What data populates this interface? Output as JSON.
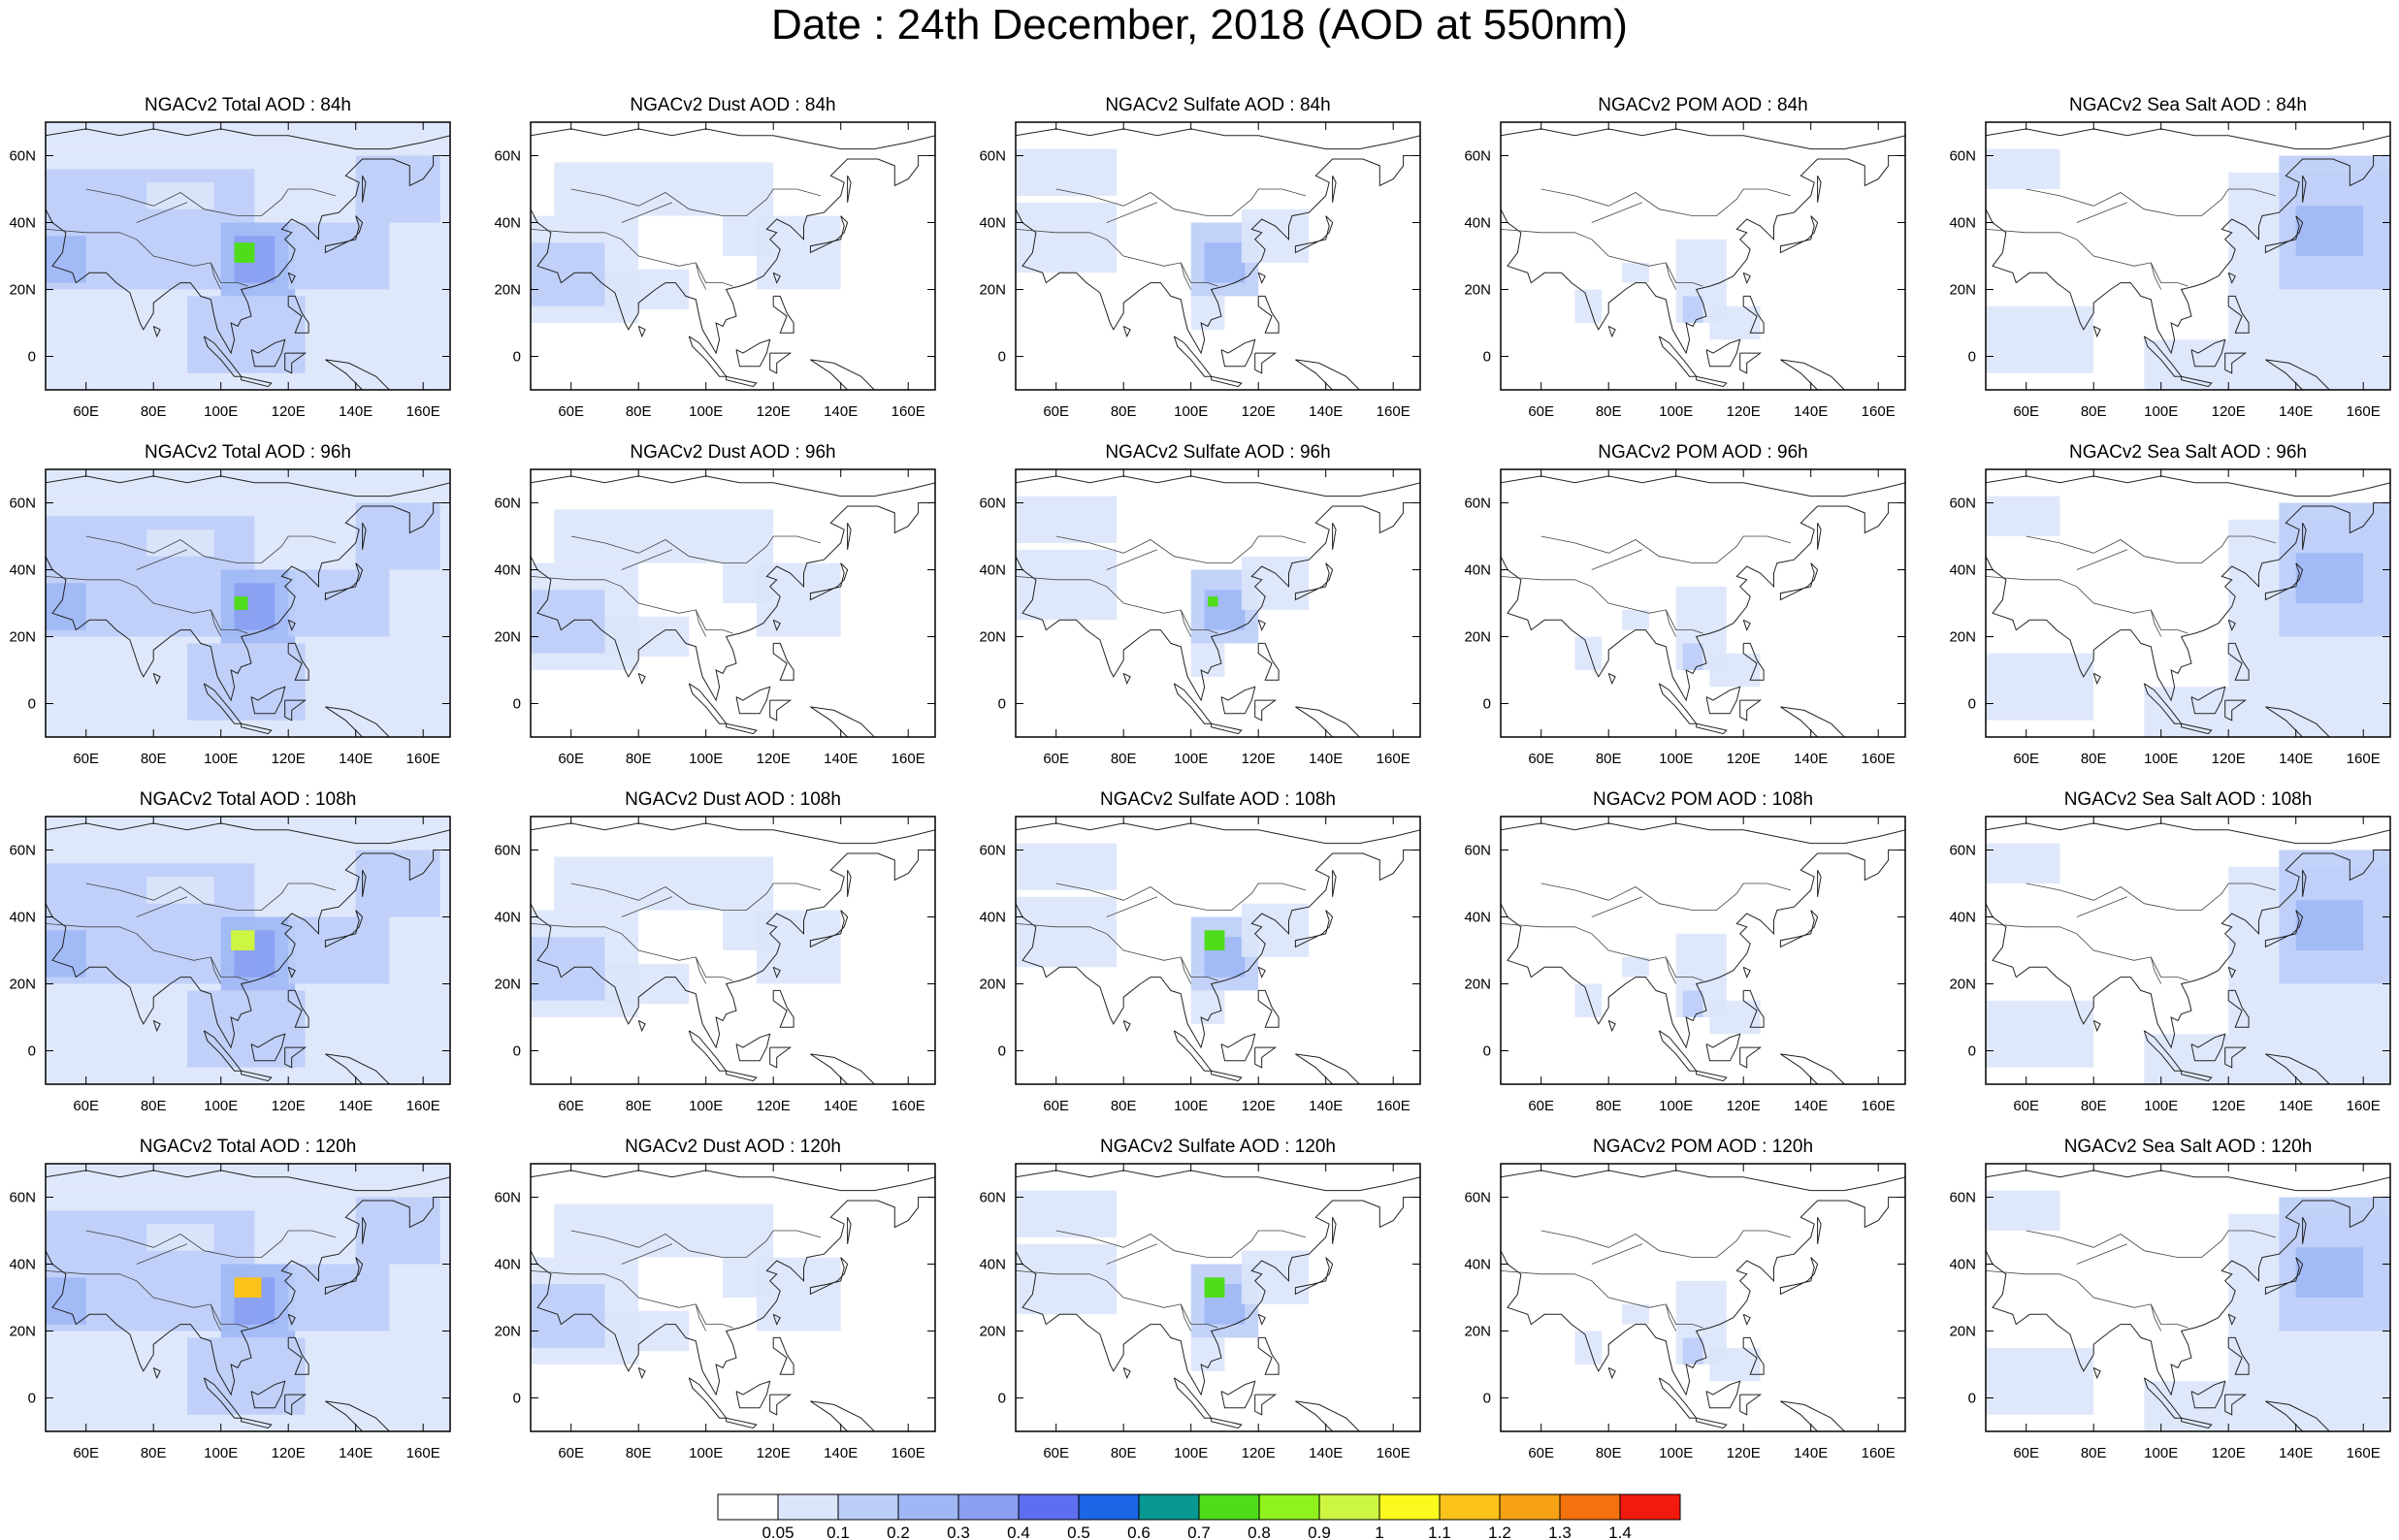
{
  "title": "Date : 24th December, 2018 (AOD at 550nm)",
  "columns": [
    "Total",
    "Dust",
    "Sulfate",
    "POM",
    "Sea Salt"
  ],
  "panel_titles": [
    [
      "NGACv2 Total AOD : 84h",
      "NGACv2 Dust AOD : 84h",
      "NGACv2 Sulfate AOD : 84h",
      "NGACv2 POM AOD : 84h",
      "NGACv2 Sea Salt AOD : 84h"
    ],
    [
      "NGACv2 Total AOD : 96h",
      "NGACv2 Dust AOD : 96h",
      "NGACv2 Sulfate AOD : 96h",
      "NGACv2 POM AOD : 96h",
      "NGACv2 Sea Salt AOD : 96h"
    ],
    [
      "NGACv2 Total AOD : 108h",
      "NGACv2 Dust AOD : 108h",
      "NGACv2 Sulfate AOD : 108h",
      "NGACv2 POM AOD : 108h",
      "NGACv2 Sea Salt AOD : 108h"
    ],
    [
      "NGACv2 Total AOD : 120h",
      "NGACv2 Dust AOD : 120h",
      "NGACv2 Sulfate AOD : 120h",
      "NGACv2 POM AOD : 120h",
      "NGACv2 Sea Salt  AOD : 120h"
    ]
  ],
  "lon_ticks": [
    "60E",
    "80E",
    "100E",
    "120E",
    "140E",
    "160E"
  ],
  "lat_ticks": [
    "60N",
    "40N",
    "20N",
    "0"
  ],
  "colorbar": {
    "labels": [
      "0.05",
      "0.1",
      "0.2",
      "0.3",
      "0.4",
      "0.5",
      "0.6",
      "0.7",
      "0.8",
      "0.9",
      "1",
      "1.1",
      "1.2",
      "1.3",
      "1.4"
    ],
    "colors": [
      "#ffffff",
      "#dce6fb",
      "#bccdf8",
      "#9fb7f5",
      "#8a9ff2",
      "#5f6ef0",
      "#1a66e6",
      "#079891",
      "#4fdc1a",
      "#8ff21c",
      "#cdf642",
      "#fbfa1f",
      "#fbc21a",
      "#f7a214",
      "#f4720d",
      "#f2190d"
    ]
  },
  "region_colors": {
    "c1": "#dce6fb",
    "c2": "#bccdf8",
    "c3": "#9fb7f5",
    "c4": "#8a9ff2",
    "c5": "#5f6ef0",
    "hot1": "#4fdc1a",
    "hot2": "#cdf642",
    "hot3": "#fbc21a",
    "hot4": "#f2190d"
  }
}
